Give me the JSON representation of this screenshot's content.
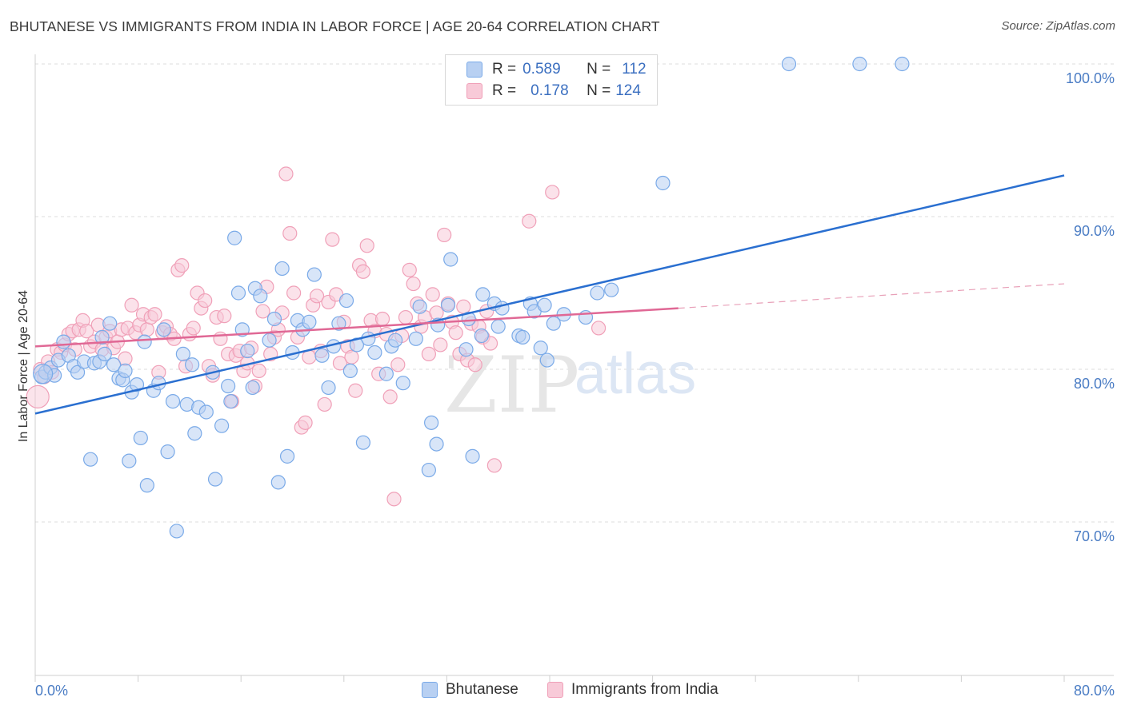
{
  "title": "BHUTANESE VS IMMIGRANTS FROM INDIA IN LABOR FORCE | AGE 20-64 CORRELATION CHART",
  "source": "Source: ZipAtlas.com",
  "watermark": {
    "zip": "ZIP",
    "atlas": "atlas"
  },
  "legend_top": {
    "rows": [
      {
        "r_label": "R =",
        "r_value": "0.589",
        "n_label": "N =",
        "n_value": "112"
      },
      {
        "r_label": "R =",
        "r_value": "0.178",
        "n_label": "N =",
        "n_value": "124"
      }
    ]
  },
  "chart_data": {
    "type": "scatter",
    "title": "BHUTANESE VS IMMIGRANTS FROM INDIA IN LABOR FORCE | AGE 20-64 CORRELATION CHART",
    "xlabel": "",
    "ylabel": "In Labor Force | Age 20-64",
    "xlim": [
      0,
      80
    ],
    "ylim": [
      60.5,
      102
    ],
    "x_tick_labels": [
      "0.0%",
      "80.0%"
    ],
    "y_ticks": [
      70,
      80,
      90,
      100
    ],
    "y_tick_labels": [
      "70.0%",
      "80.0%",
      "90.0%",
      "100.0%"
    ],
    "grid": true,
    "legend_position": "bottom",
    "series": [
      {
        "name": "Bhutanese",
        "color": "#7aaae8",
        "fill": "#b8d0f2",
        "R": 0.589,
        "N": 112,
        "trend": {
          "x0": 0,
          "y0": 77.1,
          "x1": 80,
          "y1": 92.7,
          "dashed_from": null
        },
        "points": [
          [
            0.5,
            79.5
          ],
          [
            0.8,
            79.8
          ],
          [
            1.2,
            80.1
          ],
          [
            1.5,
            79.6
          ],
          [
            1.8,
            80.6
          ],
          [
            2.2,
            81.8
          ],
          [
            2.6,
            80.9
          ],
          [
            3.0,
            80.2
          ],
          [
            3.3,
            79.8
          ],
          [
            3.8,
            80.5
          ],
          [
            4.3,
            74.1
          ],
          [
            4.6,
            80.4
          ],
          [
            5.0,
            80.5
          ],
          [
            5.2,
            82.1
          ],
          [
            5.4,
            81.0
          ],
          [
            5.8,
            83.0
          ],
          [
            6.1,
            80.3
          ],
          [
            6.5,
            79.4
          ],
          [
            6.8,
            79.3
          ],
          [
            7.0,
            79.9
          ],
          [
            7.3,
            74.0
          ],
          [
            7.5,
            78.5
          ],
          [
            7.9,
            79.0
          ],
          [
            8.2,
            75.5
          ],
          [
            8.5,
            81.8
          ],
          [
            8.7,
            72.4
          ],
          [
            9.2,
            78.6
          ],
          [
            9.6,
            79.1
          ],
          [
            10.0,
            82.6
          ],
          [
            10.3,
            74.6
          ],
          [
            10.7,
            77.9
          ],
          [
            11.0,
            69.4
          ],
          [
            11.5,
            81.0
          ],
          [
            11.8,
            77.7
          ],
          [
            12.2,
            80.3
          ],
          [
            12.4,
            75.8
          ],
          [
            12.7,
            77.5
          ],
          [
            13.3,
            77.2
          ],
          [
            13.8,
            79.8
          ],
          [
            14.0,
            72.8
          ],
          [
            14.5,
            76.3
          ],
          [
            15.0,
            78.9
          ],
          [
            15.2,
            77.9
          ],
          [
            15.5,
            88.6
          ],
          [
            15.8,
            85.0
          ],
          [
            16.1,
            82.6
          ],
          [
            16.5,
            81.2
          ],
          [
            16.9,
            78.8
          ],
          [
            17.1,
            85.3
          ],
          [
            17.5,
            84.8
          ],
          [
            18.2,
            81.9
          ],
          [
            18.6,
            83.3
          ],
          [
            18.9,
            72.6
          ],
          [
            19.2,
            86.6
          ],
          [
            19.6,
            74.3
          ],
          [
            20.0,
            81.1
          ],
          [
            20.4,
            83.2
          ],
          [
            20.8,
            82.6
          ],
          [
            21.3,
            83.1
          ],
          [
            21.7,
            86.2
          ],
          [
            22.3,
            80.9
          ],
          [
            22.8,
            78.8
          ],
          [
            23.2,
            81.5
          ],
          [
            23.6,
            83.0
          ],
          [
            24.2,
            84.5
          ],
          [
            24.5,
            79.9
          ],
          [
            25.0,
            81.6
          ],
          [
            25.5,
            75.2
          ],
          [
            25.9,
            82.0
          ],
          [
            26.4,
            81.1
          ],
          [
            27.3,
            79.7
          ],
          [
            27.7,
            81.5
          ],
          [
            28.0,
            81.9
          ],
          [
            28.6,
            79.1
          ],
          [
            29.6,
            82.0
          ],
          [
            29.9,
            84.1
          ],
          [
            30.6,
            73.4
          ],
          [
            30.8,
            76.5
          ],
          [
            31.2,
            75.1
          ],
          [
            31.3,
            82.9
          ],
          [
            32.3,
            87.2
          ],
          [
            32.1,
            84.2
          ],
          [
            33.5,
            81.3
          ],
          [
            33.7,
            83.3
          ],
          [
            34.0,
            74.3
          ],
          [
            34.7,
            82.2
          ],
          [
            34.8,
            84.9
          ],
          [
            35.7,
            84.3
          ],
          [
            36.0,
            82.8
          ],
          [
            36.3,
            84.0
          ],
          [
            37.6,
            82.2
          ],
          [
            37.9,
            82.1
          ],
          [
            38.5,
            84.3
          ],
          [
            38.8,
            83.8
          ],
          [
            39.3,
            81.4
          ],
          [
            39.6,
            84.2
          ],
          [
            39.8,
            80.6
          ],
          [
            40.3,
            83.0
          ],
          [
            41.1,
            83.6
          ],
          [
            42.8,
            83.4
          ],
          [
            43.7,
            85.0
          ],
          [
            44.8,
            85.2
          ],
          [
            48.8,
            92.2
          ],
          [
            58.6,
            100.0
          ],
          [
            64.1,
            100.0
          ],
          [
            67.4,
            100.0
          ]
        ]
      },
      {
        "name": "Immigrants from India",
        "color": "#f0a0b8",
        "fill": "#f8cad8",
        "R": 0.178,
        "N": 124,
        "trend": {
          "x0": 0,
          "y0": 81.5,
          "x1": 50,
          "y1": 84.0,
          "dashed_to_x": 80,
          "dashed_to_y": 85.6
        },
        "points": [
          [
            0.4,
            80.0
          ],
          [
            0.7,
            79.5
          ],
          [
            1.0,
            80.5
          ],
          [
            1.3,
            79.8
          ],
          [
            1.7,
            81.3
          ],
          [
            2.0,
            81.1
          ],
          [
            2.3,
            81.6
          ],
          [
            2.6,
            82.3
          ],
          [
            2.9,
            82.5
          ],
          [
            3.1,
            81.3
          ],
          [
            3.4,
            82.6
          ],
          [
            3.7,
            83.2
          ],
          [
            4.0,
            82.5
          ],
          [
            4.3,
            81.5
          ],
          [
            4.6,
            81.8
          ],
          [
            4.9,
            82.9
          ],
          [
            5.2,
            81.3
          ],
          [
            5.5,
            82.1
          ],
          [
            5.8,
            82.5
          ],
          [
            6.1,
            81.4
          ],
          [
            6.4,
            81.8
          ],
          [
            6.7,
            82.6
          ],
          [
            7.0,
            80.7
          ],
          [
            7.2,
            82.7
          ],
          [
            7.5,
            84.2
          ],
          [
            7.8,
            82.4
          ],
          [
            8.1,
            82.9
          ],
          [
            8.4,
            83.6
          ],
          [
            8.7,
            82.6
          ],
          [
            9.0,
            83.4
          ],
          [
            9.3,
            83.6
          ],
          [
            9.6,
            79.8
          ],
          [
            9.9,
            82.4
          ],
          [
            10.2,
            82.8
          ],
          [
            10.5,
            82.3
          ],
          [
            10.8,
            82.0
          ],
          [
            11.1,
            86.5
          ],
          [
            11.4,
            86.8
          ],
          [
            11.7,
            80.2
          ],
          [
            12.0,
            82.3
          ],
          [
            12.3,
            82.7
          ],
          [
            12.6,
            85.0
          ],
          [
            12.9,
            84.0
          ],
          [
            13.2,
            84.5
          ],
          [
            13.5,
            80.2
          ],
          [
            13.8,
            79.6
          ],
          [
            14.1,
            83.4
          ],
          [
            14.4,
            82.0
          ],
          [
            14.7,
            83.5
          ],
          [
            15.0,
            81.0
          ],
          [
            15.3,
            77.9
          ],
          [
            15.6,
            80.9
          ],
          [
            15.9,
            81.2
          ],
          [
            16.2,
            79.9
          ],
          [
            16.5,
            80.4
          ],
          [
            16.8,
            81.4
          ],
          [
            17.1,
            78.9
          ],
          [
            17.4,
            79.9
          ],
          [
            17.7,
            83.8
          ],
          [
            18.0,
            85.4
          ],
          [
            18.3,
            81.0
          ],
          [
            18.6,
            82.1
          ],
          [
            18.9,
            82.6
          ],
          [
            19.2,
            83.7
          ],
          [
            19.5,
            92.8
          ],
          [
            19.8,
            88.9
          ],
          [
            20.1,
            85.0
          ],
          [
            20.4,
            82.1
          ],
          [
            20.7,
            76.2
          ],
          [
            21.0,
            76.5
          ],
          [
            21.3,
            80.8
          ],
          [
            21.6,
            84.2
          ],
          [
            21.9,
            84.8
          ],
          [
            22.2,
            81.2
          ],
          [
            22.5,
            77.7
          ],
          [
            22.8,
            84.4
          ],
          [
            23.1,
            88.5
          ],
          [
            23.4,
            84.9
          ],
          [
            23.7,
            80.4
          ],
          [
            24.0,
            83.1
          ],
          [
            24.3,
            81.5
          ],
          [
            24.6,
            80.8
          ],
          [
            24.9,
            78.6
          ],
          [
            25.2,
            86.8
          ],
          [
            25.5,
            86.4
          ],
          [
            25.8,
            88.1
          ],
          [
            26.1,
            83.2
          ],
          [
            26.4,
            82.5
          ],
          [
            26.7,
            79.7
          ],
          [
            27.0,
            83.3
          ],
          [
            27.3,
            82.3
          ],
          [
            27.6,
            78.2
          ],
          [
            27.9,
            71.5
          ],
          [
            28.2,
            80.3
          ],
          [
            28.5,
            82.2
          ],
          [
            28.8,
            83.4
          ],
          [
            29.1,
            86.5
          ],
          [
            29.4,
            85.6
          ],
          [
            29.7,
            84.3
          ],
          [
            30.0,
            82.8
          ],
          [
            30.3,
            83.4
          ],
          [
            30.6,
            81.0
          ],
          [
            30.9,
            84.9
          ],
          [
            31.2,
            83.7
          ],
          [
            31.5,
            81.6
          ],
          [
            31.8,
            88.8
          ],
          [
            32.1,
            84.3
          ],
          [
            32.4,
            83.1
          ],
          [
            32.7,
            82.4
          ],
          [
            33.0,
            81.0
          ],
          [
            33.3,
            84.1
          ],
          [
            33.6,
            80.6
          ],
          [
            33.9,
            83.0
          ],
          [
            34.2,
            80.3
          ],
          [
            34.5,
            82.8
          ],
          [
            34.8,
            82.1
          ],
          [
            35.1,
            83.8
          ],
          [
            35.4,
            81.7
          ],
          [
            35.7,
            73.7
          ],
          [
            38.4,
            89.7
          ],
          [
            40.2,
            91.6
          ],
          [
            43.8,
            82.7
          ]
        ]
      }
    ]
  },
  "bottom_legend": {
    "items": [
      {
        "label": "Bhutanese"
      },
      {
        "label": "Immigrants from India"
      }
    ]
  }
}
